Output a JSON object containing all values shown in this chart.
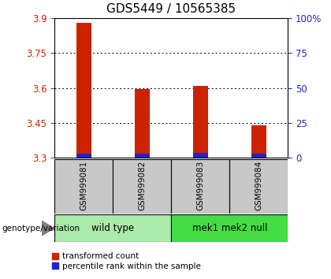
{
  "title": "GDS5449 / 10565385",
  "samples": [
    "GSM999081",
    "GSM999082",
    "GSM999083",
    "GSM999084"
  ],
  "red_values": [
    3.88,
    3.595,
    3.61,
    3.44
  ],
  "blue_values": [
    3.317,
    3.317,
    3.322,
    3.317
  ],
  "base_value": 3.3,
  "ylim": [
    3.3,
    3.9
  ],
  "yticks_left": [
    3.3,
    3.45,
    3.6,
    3.75,
    3.9
  ],
  "yticks_right": [
    3.3,
    3.45,
    3.6,
    3.75,
    3.9
  ],
  "yright_labels": [
    "0",
    "25",
    "50",
    "75",
    "100%"
  ],
  "groups": [
    {
      "label": "wild type",
      "samples": [
        0,
        1
      ],
      "color": "#AAEAAA"
    },
    {
      "label": "mek1 mek2 null",
      "samples": [
        2,
        3
      ],
      "color": "#44DD44"
    }
  ],
  "genotype_label": "genotype/variation",
  "legend_red": "transformed count",
  "legend_blue": "percentile rank within the sample",
  "bar_width": 0.25,
  "red_color": "#CC2200",
  "blue_color": "#2222CC",
  "left_tick_color": "#CC2200",
  "right_tick_color": "#2222CC",
  "sample_box_color": "#C8C8C8",
  "title_fontsize": 11,
  "tick_fontsize": 8.5,
  "label_fontsize": 8
}
